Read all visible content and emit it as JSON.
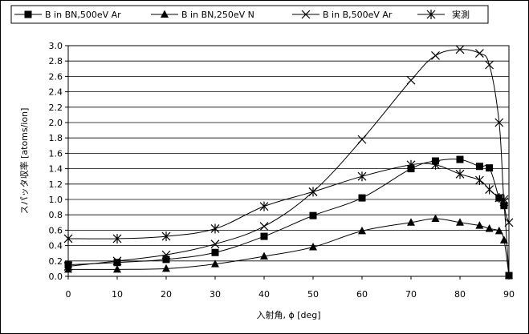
{
  "chart_data": {
    "type": "line",
    "title": "",
    "xlabel": "入射角, ϕ [deg]",
    "ylabel": "スパッタ収率 [atoms/ion]",
    "xlim": [
      0,
      90
    ],
    "ylim": [
      0,
      3.0
    ],
    "xticks": [
      "0",
      "10",
      "20",
      "30",
      "40",
      "50",
      "60",
      "70",
      "80",
      "90"
    ],
    "yticks": [
      "0.0",
      "0.2",
      "0.4",
      "0.6",
      "0.8",
      "1.0",
      "1.2",
      "1.4",
      "1.6",
      "1.8",
      "2.0",
      "2.2",
      "2.4",
      "2.6",
      "2.8",
      "3.0"
    ],
    "grid": "horizontal",
    "legend_position": "top",
    "series": [
      {
        "name": "B in BN,500eV Ar",
        "marker": "square",
        "x": [
          0,
          10,
          20,
          30,
          40,
          50,
          60,
          70,
          75,
          80,
          84,
          86,
          88,
          89,
          90
        ],
        "y": [
          0.15,
          0.18,
          0.22,
          0.31,
          0.52,
          0.79,
          1.02,
          1.4,
          1.5,
          1.52,
          1.43,
          1.41,
          1.02,
          0.92,
          0.01
        ]
      },
      {
        "name": "B in BN,250eV N",
        "marker": "triangle",
        "x": [
          0,
          10,
          20,
          30,
          40,
          50,
          60,
          70,
          75,
          80,
          84,
          86,
          88,
          89,
          90
        ],
        "y": [
          0.09,
          0.09,
          0.1,
          0.16,
          0.26,
          0.38,
          0.59,
          0.7,
          0.75,
          0.7,
          0.66,
          0.62,
          0.59,
          0.47,
          0.01
        ]
      },
      {
        "name": "B in B,500eV Ar",
        "marker": "x",
        "x": [
          0,
          10,
          20,
          30,
          40,
          50,
          60,
          70,
          75,
          80,
          84,
          86,
          88,
          89,
          90
        ],
        "y": [
          0.13,
          0.2,
          0.28,
          0.42,
          0.65,
          1.1,
          1.78,
          2.55,
          2.87,
          2.95,
          2.9,
          2.75,
          2.0,
          0.97,
          0.7
        ]
      },
      {
        "name": "実測",
        "marker": "asterisk",
        "x": [
          0,
          10,
          20,
          30,
          40,
          50,
          60,
          70,
          75,
          80,
          84,
          86,
          88,
          89
        ],
        "y": [
          0.49,
          0.49,
          0.52,
          0.62,
          0.91,
          1.1,
          1.3,
          1.45,
          1.45,
          1.33,
          1.25,
          1.13,
          1.02,
          1.0
        ]
      }
    ]
  }
}
